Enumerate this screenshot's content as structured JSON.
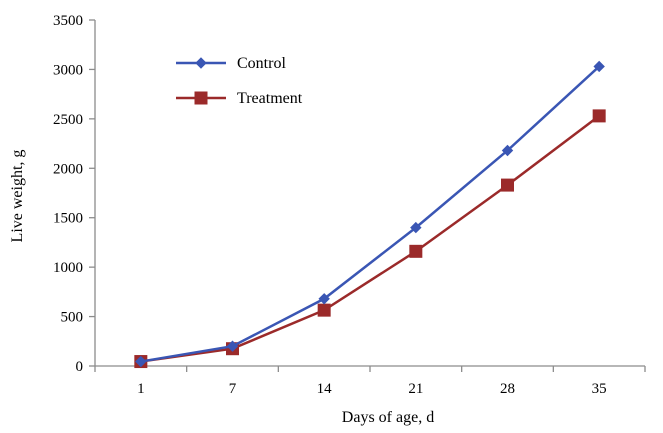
{
  "chart_data": {
    "type": "line",
    "xlabel": "Days of age, d",
    "ylabel": "Live weight, g",
    "categories": [
      "1",
      "7",
      "14",
      "21",
      "28",
      "35"
    ],
    "ylim": [
      0,
      3500
    ],
    "yticks": [
      "0",
      "500",
      "1000",
      "1500",
      "2000",
      "2500",
      "3000",
      "3500"
    ],
    "grid": false,
    "legend_position": "top-left",
    "series": [
      {
        "name": "Control",
        "values": [
          45,
          200,
          680,
          1400,
          2180,
          3030
        ],
        "color": "#3a56b4",
        "marker": "diamond"
      },
      {
        "name": "Treatment",
        "values": [
          45,
          175,
          565,
          1160,
          1830,
          2530
        ],
        "color": "#9b2a2a",
        "marker": "square"
      }
    ]
  }
}
